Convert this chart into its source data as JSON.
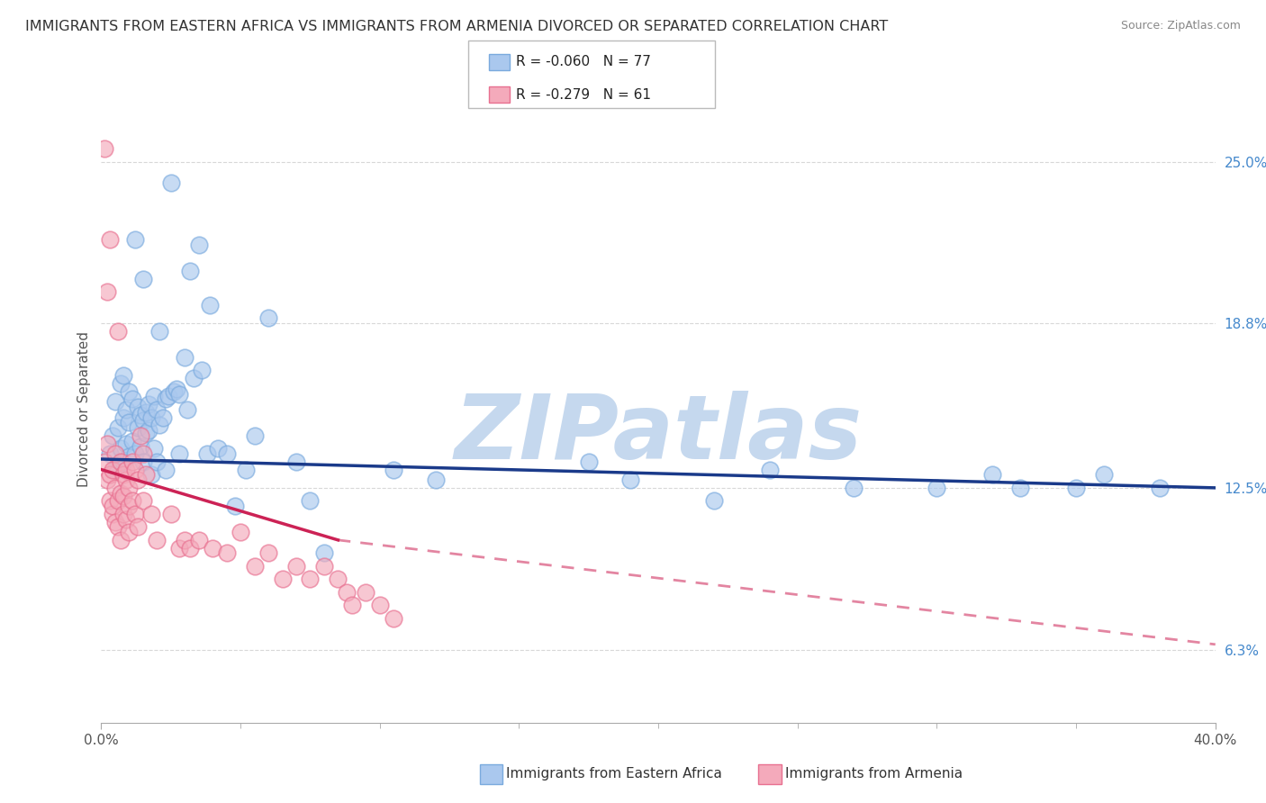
{
  "title": "IMMIGRANTS FROM EASTERN AFRICA VS IMMIGRANTS FROM ARMENIA DIVORCED OR SEPARATED CORRELATION CHART",
  "source": "Source: ZipAtlas.com",
  "ylabel": "Divorced or Separated",
  "xlim": [
    0.0,
    40.0
  ],
  "ylim": [
    3.5,
    27.5
  ],
  "yticks": [
    6.3,
    12.5,
    18.8,
    25.0
  ],
  "xticks": [
    0.0,
    40.0
  ],
  "blue_label": "Immigrants from Eastern Africa",
  "pink_label": "Immigrants from Armenia",
  "blue_R": -0.06,
  "blue_N": 77,
  "pink_R": -0.279,
  "pink_N": 61,
  "blue_color": "#aac8ee",
  "pink_color": "#f4aabb",
  "blue_edge_color": "#7aaade",
  "pink_edge_color": "#e87090",
  "blue_line_color": "#1a3a8a",
  "pink_line_color": "#cc2255",
  "watermark": "ZIPatlas",
  "watermark_color": "#c5d8ee",
  "background_color": "#ffffff",
  "grid_color": "#d8d8d8",
  "title_color": "#333333",
  "source_color": "#888888",
  "yaxis_color": "#4488cc",
  "title_fontsize": 11.5,
  "source_fontsize": 9,
  "blue_line_y_start": 13.6,
  "blue_line_y_end": 12.5,
  "pink_line_y_start": 13.2,
  "pink_line_y_solid_end": 10.5,
  "pink_line_solid_end_x": 8.5,
  "pink_line_y_dash_end": 6.5,
  "blue_scatter_x": [
    0.3,
    0.4,
    0.5,
    0.5,
    0.6,
    0.7,
    0.7,
    0.8,
    0.8,
    0.8,
    0.9,
    0.9,
    1.0,
    1.0,
    1.0,
    1.1,
    1.1,
    1.2,
    1.2,
    1.3,
    1.3,
    1.4,
    1.4,
    1.5,
    1.5,
    1.5,
    1.6,
    1.6,
    1.7,
    1.7,
    1.8,
    1.8,
    1.9,
    1.9,
    2.0,
    2.0,
    2.1,
    2.1,
    2.2,
    2.3,
    2.3,
    2.4,
    2.5,
    2.6,
    2.7,
    2.8,
    2.8,
    3.0,
    3.1,
    3.2,
    3.3,
    3.5,
    3.6,
    3.8,
    3.9,
    4.2,
    4.5,
    4.8,
    5.2,
    5.5,
    6.0,
    7.0,
    7.5,
    8.0,
    10.5,
    12.0,
    17.5,
    19.0,
    22.0,
    24.0,
    27.0,
    30.0,
    32.0,
    33.0,
    35.0,
    36.0,
    38.0
  ],
  "blue_scatter_y": [
    13.8,
    14.5,
    13.2,
    15.8,
    14.8,
    14.0,
    16.5,
    13.5,
    16.8,
    15.2,
    14.2,
    15.5,
    13.7,
    15.0,
    16.2,
    14.3,
    15.9,
    13.8,
    22.0,
    14.8,
    15.6,
    14.1,
    15.3,
    13.5,
    15.1,
    20.5,
    14.6,
    15.4,
    14.7,
    15.7,
    13.0,
    15.2,
    14.0,
    16.0,
    13.5,
    15.5,
    14.9,
    18.5,
    15.2,
    13.2,
    15.9,
    16.0,
    24.2,
    16.2,
    16.3,
    13.8,
    16.1,
    17.5,
    15.5,
    20.8,
    16.7,
    21.8,
    17.0,
    13.8,
    19.5,
    14.0,
    13.8,
    11.8,
    13.2,
    14.5,
    19.0,
    13.5,
    12.0,
    10.0,
    13.2,
    12.8,
    13.5,
    12.8,
    12.0,
    13.2,
    12.5,
    12.5,
    13.0,
    12.5,
    12.5,
    13.0,
    12.5
  ],
  "pink_scatter_x": [
    0.1,
    0.1,
    0.2,
    0.2,
    0.2,
    0.3,
    0.3,
    0.3,
    0.4,
    0.4,
    0.4,
    0.5,
    0.5,
    0.5,
    0.6,
    0.6,
    0.6,
    0.7,
    0.7,
    0.7,
    0.8,
    0.8,
    0.8,
    0.9,
    0.9,
    0.9,
    1.0,
    1.0,
    1.0,
    1.1,
    1.1,
    1.2,
    1.2,
    1.3,
    1.3,
    1.4,
    1.5,
    1.5,
    1.6,
    1.8,
    2.0,
    2.5,
    2.8,
    3.0,
    3.2,
    3.5,
    4.0,
    4.5,
    5.0,
    5.5,
    6.0,
    6.5,
    7.0,
    7.5,
    8.0,
    8.5,
    8.8,
    9.0,
    9.5,
    10.0,
    10.5
  ],
  "pink_scatter_y": [
    13.5,
    25.5,
    14.2,
    20.0,
    12.8,
    13.0,
    12.0,
    22.0,
    11.5,
    13.2,
    11.8,
    12.5,
    13.8,
    11.2,
    12.0,
    18.5,
    11.0,
    12.3,
    13.5,
    10.5,
    12.2,
    13.0,
    11.5,
    12.8,
    13.2,
    11.3,
    11.8,
    12.5,
    10.8,
    12.0,
    13.5,
    11.5,
    13.2,
    12.8,
    11.0,
    14.5,
    12.0,
    13.8,
    13.0,
    11.5,
    10.5,
    11.5,
    10.2,
    10.5,
    10.2,
    10.5,
    10.2,
    10.0,
    10.8,
    9.5,
    10.0,
    9.0,
    9.5,
    9.0,
    9.5,
    9.0,
    8.5,
    8.0,
    8.5,
    8.0,
    7.5
  ]
}
